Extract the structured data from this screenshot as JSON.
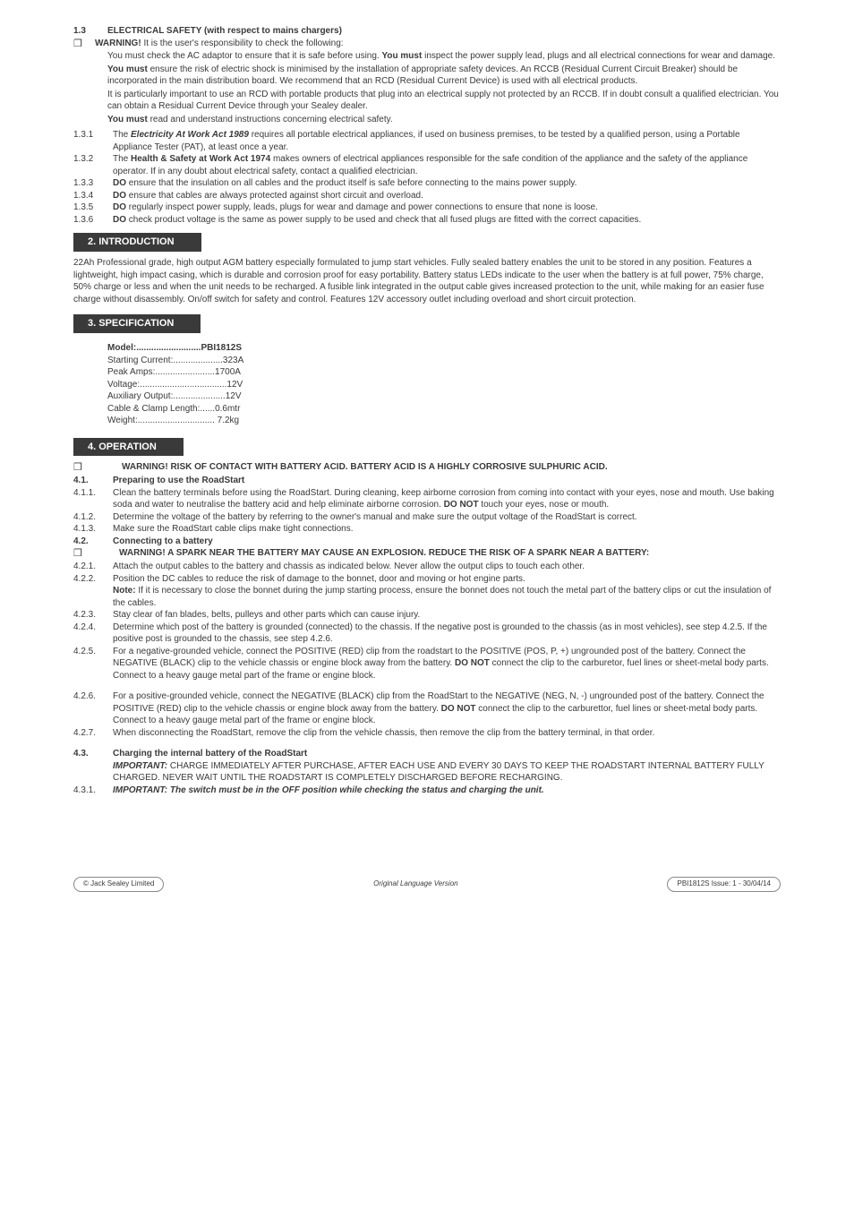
{
  "colors": {
    "header_bg": "#3a3a3a",
    "header_fg": "#ffffff",
    "text": "#3a3a3a",
    "bg": "#ffffff",
    "footer_border": "#888888"
  },
  "typography": {
    "body_fontsize_pt": 7.5,
    "header_fontsize_pt": 8.5,
    "font_family": "Arial"
  },
  "s13": {
    "num": "1.3",
    "title": "ELECTRICAL SAFETY (with respect to mains chargers)",
    "warn_lead": "WARNING!",
    "warn_rest": " It is the user's responsibility to check the following:",
    "p1a": "You must check the AC adaptor to ensure that it is safe before using. ",
    "p1b": "You must",
    "p1c": " inspect the power supply lead, plugs and all  electrical connections for wear and damage.",
    "p2a": "You must",
    "p2b": " ensure the risk of electric shock is minimised by the installation of appropriate safety devices. An RCCB (Residual  Current Circuit Breaker) should be incorporated in the main distribution board. We recommend that an RCD (Residual Current Device) is used with all electrical products.",
    "p3": "It is particularly important to use an RCD with portable products that plug into an electrical supply not protected by an RCCB. If in doubt consult a qualified electrician. You can obtain a Residual Current Device through your Sealey dealer.",
    "p4a": "You must",
    "p4b": " read and understand instructions concerning electrical safety.",
    "n131": "1.3.1",
    "t131a": "The ",
    "t131b": "Electricity At Work Act 1989",
    "t131c": " requires all portable electrical appliances, if used on business premises, to be tested by a qualified person, using a Portable Appliance Tester (PAT), at least once a year.",
    "n132": "1.3.2",
    "t132a": "The ",
    "t132b": "Health & Safety at Work Act 1974",
    "t132c": " makes owners of electrical appliances responsible for the safe condition of the appliance and the safety of the appliance operator. If in any doubt about electrical safety, contact a qualified electrician.",
    "n133": "1.3.3",
    "t133a": "DO",
    "t133b": " ensure that the insulation on all cables and the product itself is safe before connecting to the mains power supply.",
    "n134": "1.3.4",
    "t134a": "DO",
    "t134b": " ensure that cables are always protected against short circuit and overload.",
    "n135": "1.3.5",
    "t135a": "DO",
    "t135b": " regularly inspect power supply, leads, plugs for wear and damage and power connections to ensure that none is loose.",
    "n136": "1.3.6",
    "t136a": "DO",
    "t136b": " check product voltage is the same as power supply to be used and check that all fused plugs are fitted with the correct capacities."
  },
  "s2": {
    "head": "2.  INTRODUCTION",
    "body": "22Ah Professional grade, high output AGM battery especially formulated to jump start vehicles. Fully sealed battery enables the unit to be stored in any position. Features a lightweight, high impact casing, which is durable and corrosion proof for easy portability. Battery status LEDs indicate to the user when the battery is at full power, 75% charge, 50% charge or less and when the unit needs to be recharged. A fusible link integrated in the output cable gives increased protection to the unit, while making for an easier fuse charge without disassembly. On/off switch for safety and control. Features 12V accessory outlet including overload and short circuit protection."
  },
  "s3": {
    "head": "3.  SPECIFICATION",
    "rows": [
      {
        "k": "Model:",
        "dots": "..........................",
        "v": "PBI1812S",
        "bold": true
      },
      {
        "k": "Starting Current:",
        "dots": "....................",
        "v": "323A",
        "bold": false
      },
      {
        "k": "Peak Amps:",
        "dots": "........................",
        "v": "1700A",
        "bold": false
      },
      {
        "k": "Voltage:",
        "dots": "...................................",
        "v": "12V",
        "bold": false
      },
      {
        "k": "Auxiliary Output:",
        "dots": ".....................",
        "v": "12V",
        "bold": false
      },
      {
        "k": "Cable & Clamp Length:",
        "dots": "......",
        "v": "0.6mtr",
        "bold": false
      },
      {
        "k": "Weight:",
        "dots": "...............................",
        "v": " 7.2kg",
        "bold": false
      }
    ]
  },
  "s4": {
    "head": "4.  OPERATION",
    "warn": "WARNING! RISK OF CONTACT WITH BATTERY ACID. BATTERY ACID IS A HIGHLY CORROSIVE SULPHURIC ACID.",
    "n41": "4.1.",
    "t41": "Preparing to use the RoadStart",
    "n411": "4.1.1.",
    "t411a": "Clean the battery terminals before using the RoadStart. During cleaning, keep airborne corrosion from coming into contact with your eyes, nose and mouth. Use baking soda and water to neutralise the battery acid and help eliminate airborne corrosion. ",
    "t411b": "DO NOT",
    "t411c": " touch your eyes, nose or mouth.",
    "n412": "4.1.2.",
    "t412": "Determine the voltage of the battery by referring to the owner's manual and make sure the output voltage of the RoadStart is correct.",
    "n413": "4.1.3.",
    "t413": "Make sure the RoadStart cable clips make tight connections.",
    "n42": "4.2.",
    "t42": "Connecting to a battery",
    "warn2": "WARNING! A SPARK NEAR THE BATTERY MAY CAUSE AN EXPLOSION. REDUCE THE RISK OF A SPARK NEAR A BATTERY:",
    "n421": "4.2.1.",
    "t421": "Attach the output cables to the battery and chassis as indicated below. Never allow the output clips to touch each other.",
    "n422": "4.2.2.",
    "t422": "Position the DC cables to reduce the risk of damage to the bonnet, door and moving or hot engine parts.",
    "note_lead": "Note:",
    "note_rest": " If it is necessary to close the bonnet during the jump starting process, ensure the bonnet does not touch the metal part of the battery clips or cut the insulation of the cables.",
    "n423": "4.2.3.",
    "t423": "Stay clear of fan blades, belts, pulleys and other parts which can cause injury.",
    "n424": "4.2.4.",
    "t424": "Determine which post of the battery is grounded (connected) to the chassis. If the negative post is grounded to the chassis (as in most vehicles), see step 4.2.5. If the positive post is grounded to the chassis, see step 4.2.6.",
    "n425": "4.2.5.",
    "t425a": "For a negative-grounded vehicle, connect the POSITIVE (RED) clip from the roadstart to the POSITIVE (POS, P, +) ungrounded post of the battery. Connect the NEGATIVE (BLACK) clip to the vehicle chassis or engine block away from the battery. ",
    "t425b": "DO NOT",
    "t425c": " connect the clip to the carburetor, fuel lines or sheet-metal body parts. Connect to a heavy gauge metal part of the frame or engine block.",
    "n426": "4.2.6.",
    "t426a": "For a positive-grounded vehicle, connect the NEGATIVE (BLACK) clip from the RoadStart to the NEGATIVE (NEG, N, -) ungrounded post of the battery. Connect the POSITIVE (RED) clip to the vehicle chassis or engine block away from the battery. ",
    "t426b": "DO NOT",
    "t426c": " connect the clip to the carburettor, fuel lines or sheet-metal body parts. Connect to a heavy gauge metal part of the frame or engine block.",
    "n427": "4.2.7.",
    "t427": "When disconnecting the RoadStart, remove the clip from the vehicle chassis, then remove the clip from the battery terminal, in that order.",
    "n43": "4.3.",
    "t43": "Charging the internal battery of the RoadStart",
    "imp_lead": "IMPORTANT:",
    "imp_rest": " CHARGE IMMEDIATELY AFTER PURCHASE, AFTER EACH USE AND EVERY 30 DAYS TO KEEP THE ROADSTART INTERNAL BATTERY FULLY CHARGED. NEVER WAIT UNTIL THE ROADSTART IS COMPLETELY DISCHARGED BEFORE RECHARGING.",
    "n431": "4.3.1.",
    "t431": "IMPORTANT: The switch must be in the OFF position while checking the status and charging the unit."
  },
  "footer": {
    "left": "© Jack Sealey Limited",
    "mid": "Original Language Version",
    "right": "PBI1812S     Issue: 1 - 30/04/14"
  }
}
